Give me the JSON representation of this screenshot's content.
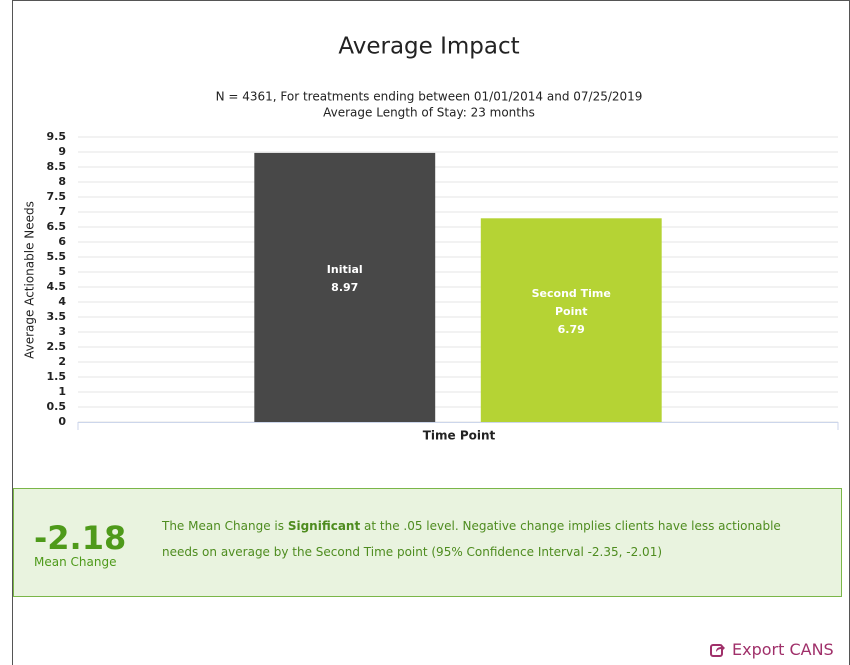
{
  "chart_data": {
    "type": "bar",
    "title": "Average Impact",
    "subtitle": [
      "N = 4361, For treatments ending between 01/01/2014 and 07/25/2019",
      "Average Length of Stay: 23 months"
    ],
    "x_label": "Time Point",
    "y_label": "Average Actionable Needs",
    "categories": [
      null
    ],
    "series": [
      {
        "name": "Initial",
        "color": "#484848",
        "values": [
          8.97
        ]
      },
      {
        "name": "Second Time Point",
        "color": "#b5d334",
        "values": [
          6.79
        ]
      }
    ],
    "ylim": [
      0,
      9.5
    ],
    "yticks": [
      0,
      0.5,
      1,
      1.5,
      2,
      2.5,
      3,
      3.5,
      4,
      4.5,
      5,
      5.5,
      6,
      6.5,
      7,
      7.5,
      8,
      8.5,
      9,
      9.5
    ],
    "grid": true
  },
  "summary": {
    "value": "-2.18",
    "label": "Mean Change",
    "text_before": "The Mean Change is ",
    "emphasis": "Significant",
    "text_after": " at the .05 level. Negative change implies clients have less actionable needs on average by the Second Time point (95% Confidence Interval -2.35, -2.01)"
  },
  "export": {
    "label": "Export CANS"
  }
}
